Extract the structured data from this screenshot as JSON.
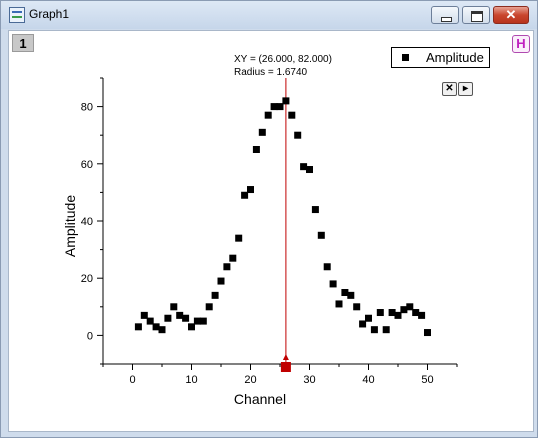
{
  "window": {
    "title": "Graph1",
    "icon": "graph-window-icon",
    "controls": [
      "minimize-icon",
      "maximize-icon",
      "close-icon"
    ]
  },
  "graph": {
    "layer_label": "1",
    "h_badge": "H",
    "legend_label": "Amplitude",
    "readout_line1": "XY = (26.000, 82.000)",
    "readout_line2": "Radius = 1.6740",
    "cursor_color": "#c00000",
    "tool_buttons": [
      "close-icon",
      "next-arrow-icon"
    ]
  },
  "chart_data": {
    "type": "scatter",
    "xlabel": "Channel",
    "ylabel": "Amplitude",
    "xlim": [
      -5,
      55
    ],
    "ylim": [
      -10,
      90
    ],
    "x_ticks": [
      0,
      10,
      20,
      30,
      40,
      50
    ],
    "y_ticks": [
      0,
      20,
      40,
      60,
      80
    ],
    "grid": false,
    "legend": "top-right",
    "series": [
      {
        "name": "Amplitude",
        "marker": "square",
        "color": "#000000",
        "x": [
          1,
          2,
          3,
          4,
          5,
          6,
          7,
          8,
          9,
          10,
          11,
          12,
          13,
          14,
          15,
          16,
          17,
          18,
          19,
          20,
          21,
          22,
          23,
          24,
          25,
          26,
          27,
          28,
          29,
          30,
          31,
          32,
          33,
          34,
          35,
          36,
          37,
          38,
          39,
          40,
          41,
          42,
          43,
          44,
          45,
          46,
          47,
          48,
          49,
          50
        ],
        "y": [
          3,
          7,
          5,
          3,
          2,
          6,
          10,
          7,
          6,
          3,
          5,
          5,
          10,
          14,
          19,
          24,
          27,
          34,
          49,
          51,
          65,
          71,
          77,
          80,
          80,
          82,
          77,
          70,
          59,
          58,
          44,
          35,
          24,
          18,
          11,
          15,
          14,
          10,
          4,
          6,
          2,
          8,
          2,
          8,
          7,
          9,
          10,
          8,
          7,
          1
        ]
      }
    ],
    "cursor": {
      "x": 26,
      "y": 82
    }
  }
}
